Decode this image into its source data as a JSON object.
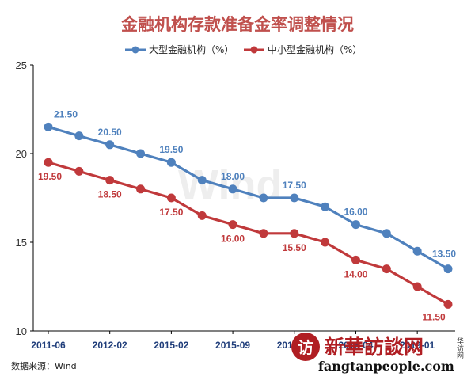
{
  "title": "金融机构存款准备金率调整情况",
  "source": "数据来源：Wind",
  "watermark": {
    "chart_mark": "Wind",
    "site_name": "新華訪談网",
    "site_url": "fangtanpeople.com",
    "side_text": "华访网"
  },
  "colors": {
    "title": "#c0504d",
    "large": "#4f81bd",
    "small": "#c0393b",
    "axis": "#000000",
    "tick_x": "#1f3d7a"
  },
  "chart_data": {
    "type": "line",
    "title": "金融机构存款准备金率调整情况",
    "x_tick_labels": [
      "2011-06",
      "2012-02",
      "2015-02",
      "2015-09",
      "2016-03",
      "2018-04",
      "2019-01"
    ],
    "ylim": [
      10,
      25
    ],
    "yticks": [
      10,
      15,
      20,
      25
    ],
    "grid": false,
    "legend_position": "top-center",
    "series": [
      {
        "name": "大型金融机构（%）",
        "values": [
          21.5,
          21.0,
          20.5,
          20.0,
          19.5,
          18.5,
          18.0,
          17.5,
          17.5,
          17.0,
          16.0,
          15.5,
          14.5,
          13.5
        ],
        "labels": [
          {
            "index": 0,
            "text": "21.50"
          },
          {
            "index": 2,
            "text": "20.50"
          },
          {
            "index": 4,
            "text": "19.50"
          },
          {
            "index": 6,
            "text": "18.00"
          },
          {
            "index": 8,
            "text": "17.50"
          },
          {
            "index": 10,
            "text": "16.00"
          },
          {
            "index": 13,
            "text": "13.50"
          }
        ]
      },
      {
        "name": "中小型金融机构（%）",
        "values": [
          19.5,
          19.0,
          18.5,
          18.0,
          17.5,
          16.5,
          16.0,
          15.5,
          15.5,
          15.0,
          14.0,
          13.5,
          12.5,
          11.5
        ],
        "labels": [
          {
            "index": 0,
            "text": "19.50"
          },
          {
            "index": 2,
            "text": "18.50"
          },
          {
            "index": 4,
            "text": "17.50"
          },
          {
            "index": 6,
            "text": "16.00"
          },
          {
            "index": 8,
            "text": "15.50"
          },
          {
            "index": 10,
            "text": "14.00"
          },
          {
            "index": 13,
            "text": "11.50"
          }
        ]
      }
    ]
  }
}
